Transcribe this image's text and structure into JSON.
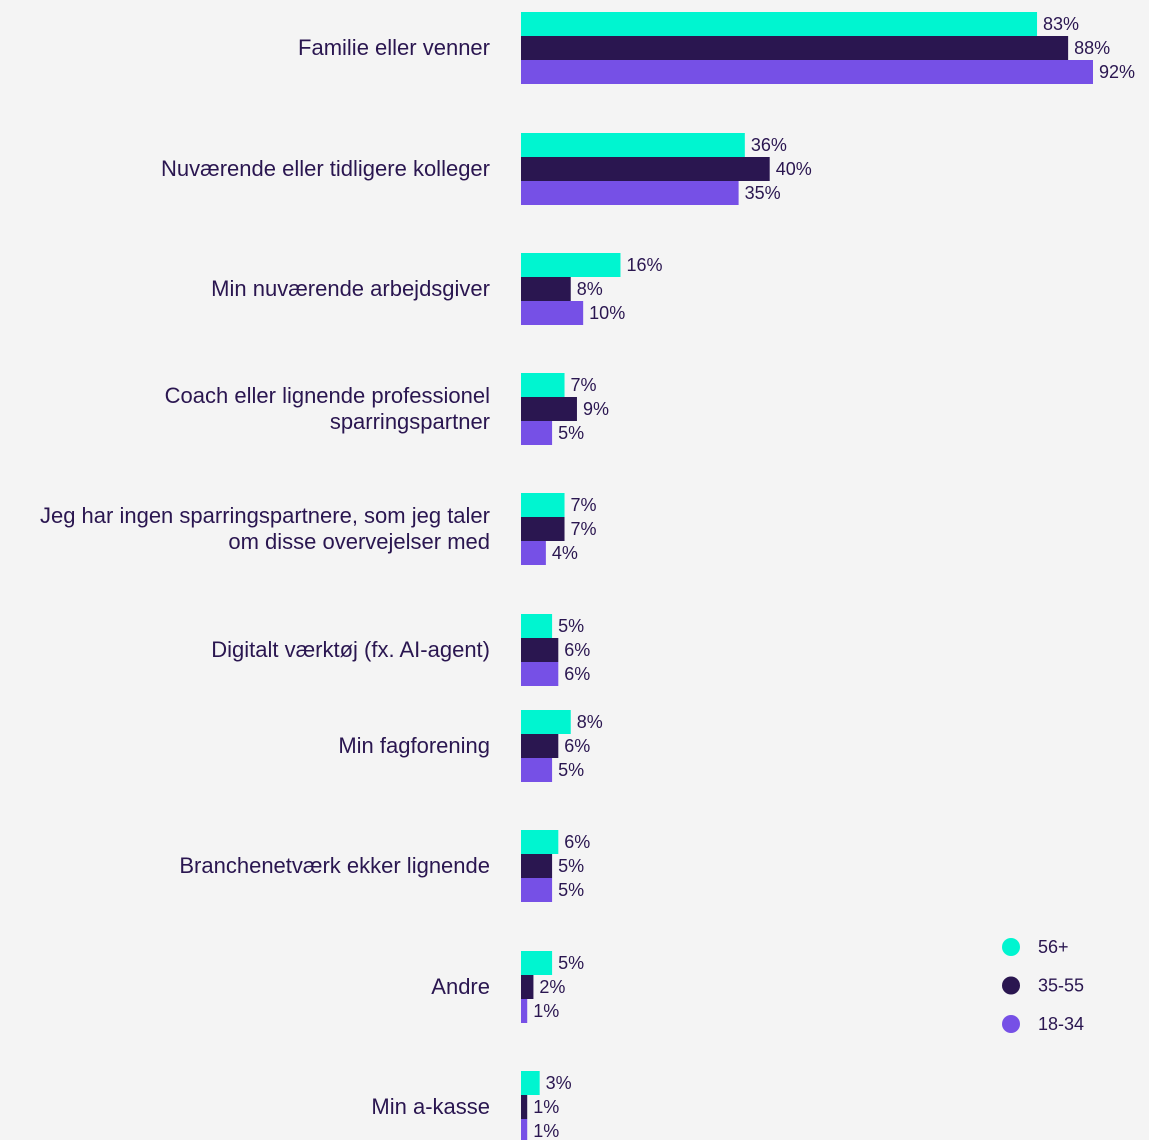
{
  "chart_data": {
    "type": "bar",
    "orientation": "horizontal",
    "categories": [
      "Familie eller venner",
      "Nuværende eller tidligere kolleger",
      "Min nuværende arbejdsgiver",
      "Coach eller lignende professionel sparringspartner",
      "Jeg har ingen sparringspartnere, som jeg taler om disse overvejelser med",
      "Digitalt værktøj (fx. AI-agent)",
      "Min fagforening",
      "Branchenetværk ekker lignende",
      "Andre",
      "Min a-kasse"
    ],
    "series": [
      {
        "name": "56+",
        "color": "#00f5d0",
        "values": [
          83,
          36,
          16,
          7,
          7,
          5,
          8,
          6,
          5,
          3
        ],
        "value_labels": [
          "83%",
          "36%",
          "16%",
          "7%",
          "7%",
          "5%",
          "8%",
          "6%",
          "5%",
          "3%"
        ]
      },
      {
        "name": "35-55",
        "color": "#2a1650",
        "values": [
          88,
          40,
          8,
          9,
          7,
          6,
          6,
          5,
          2,
          1
        ],
        "value_labels": [
          "88%",
          "40%",
          "8%",
          "9%",
          "7%",
          "6%",
          "6%",
          "5%",
          "2%",
          "1%"
        ]
      },
      {
        "name": "18-34",
        "color": "#7650e6",
        "values": [
          92,
          35,
          10,
          5,
          4,
          6,
          5,
          5,
          1,
          1
        ],
        "value_labels": [
          "92%",
          "35%",
          "10%",
          "5%",
          "4%",
          "6%",
          "5%",
          "5%",
          "1%",
          "1%"
        ]
      }
    ],
    "legend": "bottom-right"
  }
}
